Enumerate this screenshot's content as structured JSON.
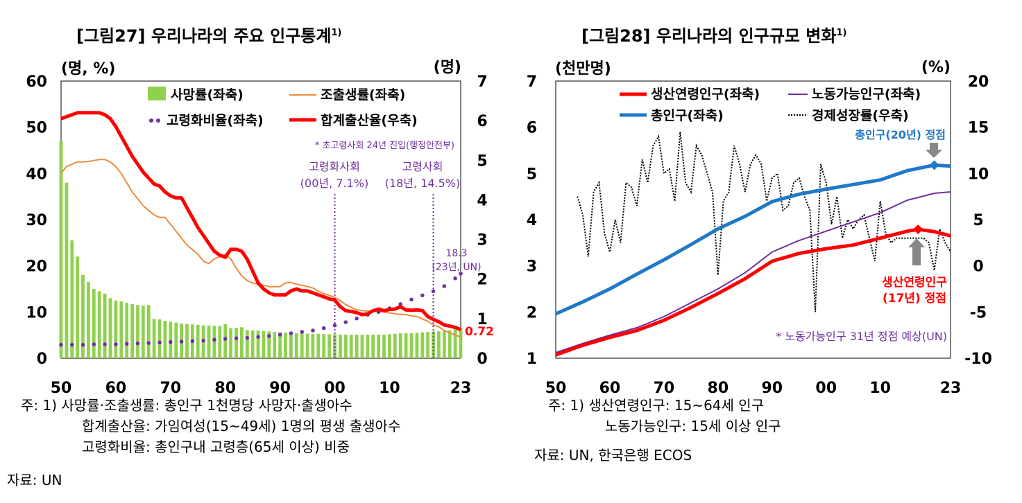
{
  "chart_data": [
    {
      "type": "bar+line",
      "title": "[그림27] 우리나라의 주요 인구통계",
      "title_sup": "1)",
      "unit_left": "(명, %)",
      "unit_right": "(명)",
      "xlim": [
        1950,
        2023
      ],
      "ylim_left": [
        0,
        60
      ],
      "ylim_right": [
        0,
        7
      ],
      "x_ticks": [
        1950,
        1960,
        1970,
        1980,
        1990,
        2000,
        2010,
        2023
      ],
      "x_tick_labels": [
        "50",
        "60",
        "70",
        "80",
        "90",
        "00",
        "10",
        "23"
      ],
      "y_ticks_left": [
        "0",
        "10",
        "20",
        "30",
        "40",
        "50",
        "60"
      ],
      "y_ticks_right": [
        "0",
        "1",
        "2",
        "3",
        "4",
        "5",
        "6",
        "7"
      ],
      "colors": {
        "death": "#8fd14f",
        "birth": "#f08a3a",
        "aging": "#7030a0",
        "tfr": "#ff0000",
        "vline": "#7030a0"
      },
      "legend": {
        "death": "사망률(좌축)",
        "birth": "조출생률(좌축)",
        "aging": "고령화비율(좌축)",
        "tfr": "합계출산율(우축)"
      },
      "annotation_note": "* 초고령사회 24년 진입(행정안전부)",
      "annotations": [
        {
          "label1": "고령화사회",
          "label2": "(00년, 7.1%)",
          "x": 2000
        },
        {
          "label1": "고령사회",
          "label2": "(18년, 14.5%)",
          "x": 2018
        }
      ],
      "end_label_aging_1": "18.3",
      "end_label_aging_2": "(23년, UN)",
      "end_label_tfr": "0.72",
      "series": [
        {
          "name": "death",
          "x": [
            1950,
            1951,
            1952,
            1953,
            1954,
            1955,
            1956,
            1957,
            1958,
            1959,
            1960,
            1961,
            1962,
            1963,
            1964,
            1965,
            1966,
            1967,
            1968,
            1969,
            1970,
            1971,
            1972,
            1973,
            1974,
            1975,
            1976,
            1977,
            1978,
            1979,
            1980,
            1981,
            1982,
            1983,
            1984,
            1985,
            1986,
            1987,
            1988,
            1989,
            1990,
            1991,
            1992,
            1993,
            1994,
            1995,
            1996,
            1997,
            1998,
            1999,
            2000,
            2001,
            2002,
            2003,
            2004,
            2005,
            2006,
            2007,
            2008,
            2009,
            2010,
            2011,
            2012,
            2013,
            2014,
            2015,
            2016,
            2017,
            2018,
            2019,
            2020,
            2021,
            2022,
            2023
          ],
          "values": [
            47,
            38,
            25.5,
            22,
            18,
            16.5,
            15,
            14.5,
            14,
            13,
            12.5,
            12.3,
            12,
            11.7,
            11.5,
            11.4,
            11.5,
            8.5,
            8.4,
            8.1,
            7.9,
            7.7,
            7.5,
            7.4,
            7.3,
            7.2,
            7.1,
            7.1,
            7,
            7,
            7.4,
            6.5,
            6.6,
            6.7,
            6.1,
            6,
            6,
            5.9,
            5.8,
            5.7,
            5.6,
            5.5,
            5.5,
            5.4,
            5.4,
            5.3,
            5.3,
            5.3,
            5.2,
            5.2,
            5.2,
            5.1,
            5.1,
            5.1,
            5.1,
            5.1,
            5.1,
            5.1,
            5.1,
            5.1,
            5.2,
            5.3,
            5.4,
            5.4,
            5.4,
            5.5,
            5.6,
            5.7,
            5.8,
            5.8,
            5.9,
            6,
            6.8,
            6.7
          ]
        },
        {
          "name": "birth",
          "x": [
            1950,
            1951,
            1952,
            1953,
            1954,
            1955,
            1956,
            1957,
            1958,
            1959,
            1960,
            1961,
            1962,
            1963,
            1964,
            1965,
            1966,
            1967,
            1968,
            1969,
            1970,
            1971,
            1972,
            1973,
            1974,
            1975,
            1976,
            1977,
            1978,
            1979,
            1980,
            1981,
            1982,
            1983,
            1984,
            1985,
            1986,
            1987,
            1988,
            1989,
            1990,
            1991,
            1992,
            1993,
            1994,
            1995,
            1996,
            1997,
            1998,
            1999,
            2000,
            2001,
            2002,
            2003,
            2004,
            2005,
            2006,
            2007,
            2008,
            2009,
            2010,
            2011,
            2012,
            2013,
            2014,
            2015,
            2016,
            2017,
            2018,
            2019,
            2020,
            2021,
            2022,
            2023
          ],
          "values": [
            40,
            41.5,
            42,
            42.5,
            42.5,
            42.6,
            42.8,
            43,
            43,
            42.5,
            41.5,
            40,
            38,
            36,
            34.5,
            33,
            32,
            31,
            30.5,
            30.5,
            29,
            27.5,
            26,
            24.5,
            23.5,
            22.5,
            21,
            20.5,
            21.5,
            22,
            22.5,
            21.5,
            19.5,
            17.8,
            16.8,
            16.3,
            16,
            15.8,
            15.5,
            15.5,
            15.5,
            16.3,
            16.4,
            16,
            15.8,
            15.5,
            15.2,
            14.5,
            14,
            13.6,
            13.2,
            12.5,
            11.6,
            11,
            10.5,
            10.3,
            10.2,
            10.2,
            10.1,
            10,
            9.8,
            9.6,
            9.5,
            9.4,
            9.2,
            9,
            8.5,
            8,
            7.2,
            6.8,
            6,
            5.5,
            5,
            4.6
          ]
        },
        {
          "name": "aging",
          "x": [
            1950,
            1952,
            1954,
            1956,
            1958,
            1960,
            1962,
            1964,
            1966,
            1968,
            1970,
            1972,
            1974,
            1976,
            1978,
            1980,
            1982,
            1984,
            1986,
            1988,
            1990,
            1992,
            1994,
            1996,
            1998,
            2000,
            2002,
            2004,
            2006,
            2008,
            2010,
            2012,
            2014,
            2016,
            2018,
            2020,
            2022,
            2023
          ],
          "values": [
            2.9,
            2.9,
            2.9,
            3,
            3,
            3,
            3.1,
            3.2,
            3.3,
            3.4,
            3.5,
            3.6,
            3.7,
            3.8,
            4,
            4.2,
            4.3,
            4.4,
            4.6,
            4.8,
            5.1,
            5.4,
            5.7,
            6,
            6.5,
            7.1,
            7.8,
            8.6,
            9.4,
            10,
            10.8,
            11.7,
            12.7,
            13.6,
            14.5,
            15.6,
            17.3,
            18.3
          ]
        },
        {
          "name": "tfr",
          "x": [
            1950,
            1951,
            1952,
            1953,
            1954,
            1955,
            1956,
            1957,
            1958,
            1959,
            1960,
            1961,
            1962,
            1963,
            1964,
            1965,
            1966,
            1967,
            1968,
            1969,
            1970,
            1971,
            1972,
            1973,
            1974,
            1975,
            1976,
            1977,
            1978,
            1979,
            1980,
            1981,
            1982,
            1983,
            1984,
            1985,
            1986,
            1987,
            1988,
            1989,
            1990,
            1991,
            1992,
            1993,
            1994,
            1995,
            1996,
            1997,
            1998,
            1999,
            2000,
            2001,
            2002,
            2003,
            2004,
            2005,
            2006,
            2007,
            2008,
            2009,
            2010,
            2011,
            2012,
            2013,
            2014,
            2015,
            2016,
            2017,
            2018,
            2019,
            2020,
            2021,
            2022,
            2023
          ],
          "values": [
            6.05,
            6.1,
            6.15,
            6.2,
            6.2,
            6.2,
            6.2,
            6.2,
            6.15,
            6.05,
            5.85,
            5.6,
            5.35,
            5.1,
            4.9,
            4.7,
            4.55,
            4.4,
            4.35,
            4.2,
            4.1,
            4.05,
            4.05,
            3.8,
            3.55,
            3.3,
            3.1,
            2.9,
            2.7,
            2.6,
            2.55,
            2.75,
            2.75,
            2.7,
            2.5,
            2.2,
            1.9,
            1.75,
            1.65,
            1.6,
            1.6,
            1.6,
            1.7,
            1.75,
            1.7,
            1.7,
            1.65,
            1.6,
            1.55,
            1.5,
            1.47,
            1.3,
            1.2,
            1.18,
            1.15,
            1.1,
            1.12,
            1.2,
            1.24,
            1.2,
            1.23,
            1.24,
            1.3,
            1.22,
            1.21,
            1.22,
            1.2,
            1.05,
            0.98,
            0.92,
            0.84,
            0.81,
            0.78,
            0.72
          ]
        }
      ]
    },
    {
      "type": "line",
      "title": "[그림28] 우리나라의 인구규모 변화",
      "title_sup": "1)",
      "unit_left": "(천만명)",
      "unit_right": "(%)",
      "xlim": [
        1950,
        2023
      ],
      "ylim_left": [
        1,
        7
      ],
      "ylim_right": [
        -10,
        20
      ],
      "x_ticks": [
        1950,
        1960,
        1970,
        1980,
        1990,
        2000,
        2010,
        2023
      ],
      "x_tick_labels": [
        "50",
        "60",
        "70",
        "80",
        "90",
        "00",
        "10",
        "23"
      ],
      "y_ticks_left": [
        "1",
        "2",
        "3",
        "4",
        "5",
        "6",
        "7"
      ],
      "y_ticks_right": [
        "-10",
        "-5",
        "0",
        "5",
        "10",
        "15",
        "20"
      ],
      "colors": {
        "working": "#ff0000",
        "total": "#1f78c8",
        "labor": "#7030a0",
        "growth": "#000000",
        "arrow": "#888888"
      },
      "legend": {
        "working": "생산연령인구(좌축)",
        "labor": "노동가능인구(좌축)",
        "total": "총인구(좌축)",
        "growth": "경제성장률(우축)"
      },
      "annotation_total_peak": "총인구(20년) 정점",
      "annotation_working_peak_1": "생산연령인구",
      "annotation_working_peak_2": "(17년) 정점",
      "annotation_note": "* 노동가능인구 31년 정점 예상(UN)",
      "series": [
        {
          "name": "total",
          "x": [
            1950,
            1955,
            1960,
            1965,
            1970,
            1975,
            1980,
            1985,
            1990,
            1995,
            2000,
            2005,
            2010,
            2015,
            2020,
            2023
          ],
          "values": [
            1.96,
            2.22,
            2.5,
            2.82,
            3.13,
            3.46,
            3.8,
            4.07,
            4.39,
            4.55,
            4.66,
            4.76,
            4.86,
            5.06,
            5.18,
            5.16
          ]
        },
        {
          "name": "working",
          "x": [
            1950,
            1955,
            1960,
            1965,
            1970,
            1975,
            1980,
            1985,
            1990,
            1995,
            2000,
            2005,
            2010,
            2015,
            2017,
            2020,
            2023
          ],
          "values": [
            1.07,
            1.28,
            1.45,
            1.6,
            1.82,
            2.1,
            2.4,
            2.72,
            3.1,
            3.27,
            3.37,
            3.45,
            3.6,
            3.75,
            3.79,
            3.74,
            3.65
          ]
        },
        {
          "name": "labor",
          "x": [
            1950,
            1955,
            1960,
            1965,
            1970,
            1975,
            1980,
            1985,
            1990,
            1995,
            2000,
            2005,
            2010,
            2015,
            2020,
            2023
          ],
          "values": [
            1.12,
            1.32,
            1.5,
            1.66,
            1.9,
            2.2,
            2.5,
            2.85,
            3.3,
            3.55,
            3.75,
            3.95,
            4.15,
            4.42,
            4.57,
            4.6
          ]
        },
        {
          "name": "growth",
          "x": [
            1954,
            1955,
            1956,
            1957,
            1958,
            1959,
            1960,
            1961,
            1962,
            1963,
            1964,
            1965,
            1966,
            1967,
            1968,
            1969,
            1970,
            1971,
            1972,
            1973,
            1974,
            1975,
            1976,
            1977,
            1978,
            1979,
            1980,
            1981,
            1982,
            1983,
            1984,
            1985,
            1986,
            1987,
            1988,
            1989,
            1990,
            1991,
            1992,
            1993,
            1994,
            1995,
            1996,
            1997,
            1998,
            1999,
            2000,
            2001,
            2002,
            2003,
            2004,
            2005,
            2006,
            2007,
            2008,
            2009,
            2010,
            2011,
            2012,
            2013,
            2014,
            2015,
            2016,
            2017,
            2018,
            2019,
            2020,
            2021,
            2022,
            2023
          ],
          "values": [
            7.5,
            5.5,
            1,
            8,
            9,
            3.5,
            1.5,
            5,
            2.5,
            9,
            8.5,
            6.5,
            11.5,
            9,
            13,
            14,
            10,
            10.5,
            7,
            14.5,
            9,
            8,
            13,
            12,
            10,
            8,
            -1,
            7,
            8,
            13,
            11,
            8,
            11,
            12,
            11,
            7,
            9.5,
            10,
            6,
            6.5,
            9,
            9.5,
            7.5,
            6,
            -5,
            11,
            9,
            4.5,
            7.5,
            3,
            5,
            4,
            5,
            5.5,
            3,
            0.5,
            7,
            3.5,
            2.5,
            3,
            3,
            3,
            3,
            3,
            3,
            2.5,
            -0.5,
            4,
            2.5,
            1.5
          ]
        }
      ]
    }
  ],
  "notes_left": [
    "주: 1) 사망률·조출생률: 총인구 1천명당 사망자·출생아수",
    "합계출산율: 가임여성(15~49세) 1명의 평생 출생아수",
    "고령화비율: 총인구내 고령층(65세 이상) 비중",
    "자료: UN"
  ],
  "notes_right": [
    "주: 1) 생산연령인구: 15~64세 인구",
    "노동가능인구: 15세 이상 인구",
    "자료: UN, 한국은행 ECOS"
  ]
}
